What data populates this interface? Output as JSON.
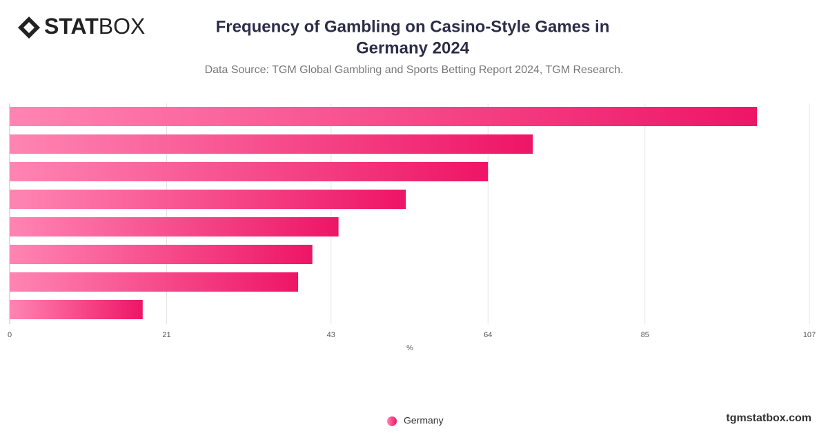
{
  "logo": {
    "bold": "STAT",
    "light": "BOX"
  },
  "footer": "tgmstatbox.com",
  "chart_data": {
    "type": "hbar",
    "title": "Frequency of Gambling on Casino-Style Games in",
    "title_line2": "Germany 2024",
    "subtitle": "Data Source: TGM Global Gambling and Sports Betting Report 2024, TGM Research.",
    "x_label": "%",
    "categories": [
      null,
      null,
      null,
      null,
      null,
      null,
      null,
      null
    ],
    "series": [
      {
        "name": "Germany",
        "color": "#ee1566",
        "values": [
          100,
          70,
          64,
          53,
          44,
          40.5,
          38.6,
          17.8
        ]
      }
    ],
    "xlim": [
      0,
      107
    ],
    "xticks": [
      0,
      21,
      43,
      64,
      85,
      107
    ],
    "grid": true
  }
}
